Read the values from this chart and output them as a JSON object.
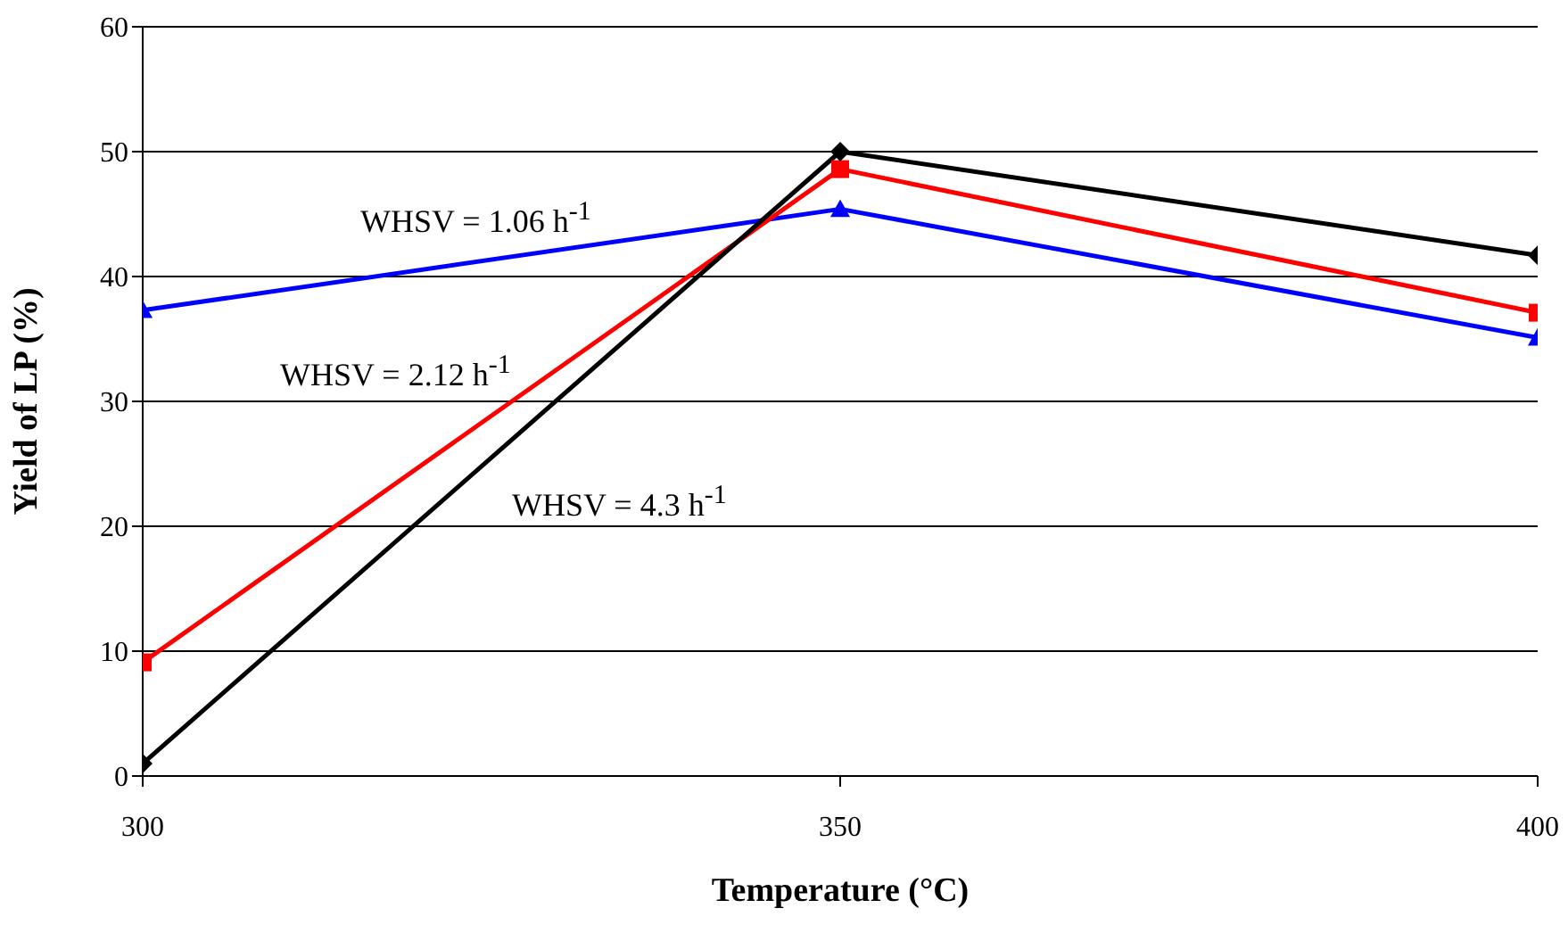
{
  "chart_data": {
    "type": "line",
    "xlabel": "Temperature (°C)",
    "ylabel": "Yield of LP (%)",
    "x": [
      300,
      350,
      400
    ],
    "xlim": [
      300,
      400
    ],
    "xticks": [
      300,
      350,
      400
    ],
    "ylim": [
      0,
      60
    ],
    "yticks": [
      0,
      10,
      20,
      30,
      40,
      50,
      60
    ],
    "grid": "y",
    "series": [
      {
        "name": "WHSV = 1.06 h$^{-1}$",
        "color": "#0000ff",
        "marker": "triangle",
        "values": [
          37.3,
          45.4,
          35.1
        ]
      },
      {
        "name": "WHSV = 2.12 h$^{-1}$",
        "color": "#ff0000",
        "marker": "square",
        "values": [
          9.1,
          48.6,
          37.1
        ]
      },
      {
        "name": "WHSV = 4.3 h$^{-1}$",
        "color": "#000000",
        "marker": "diamond",
        "values": [
          1,
          50,
          41.7
        ]
      }
    ]
  }
}
